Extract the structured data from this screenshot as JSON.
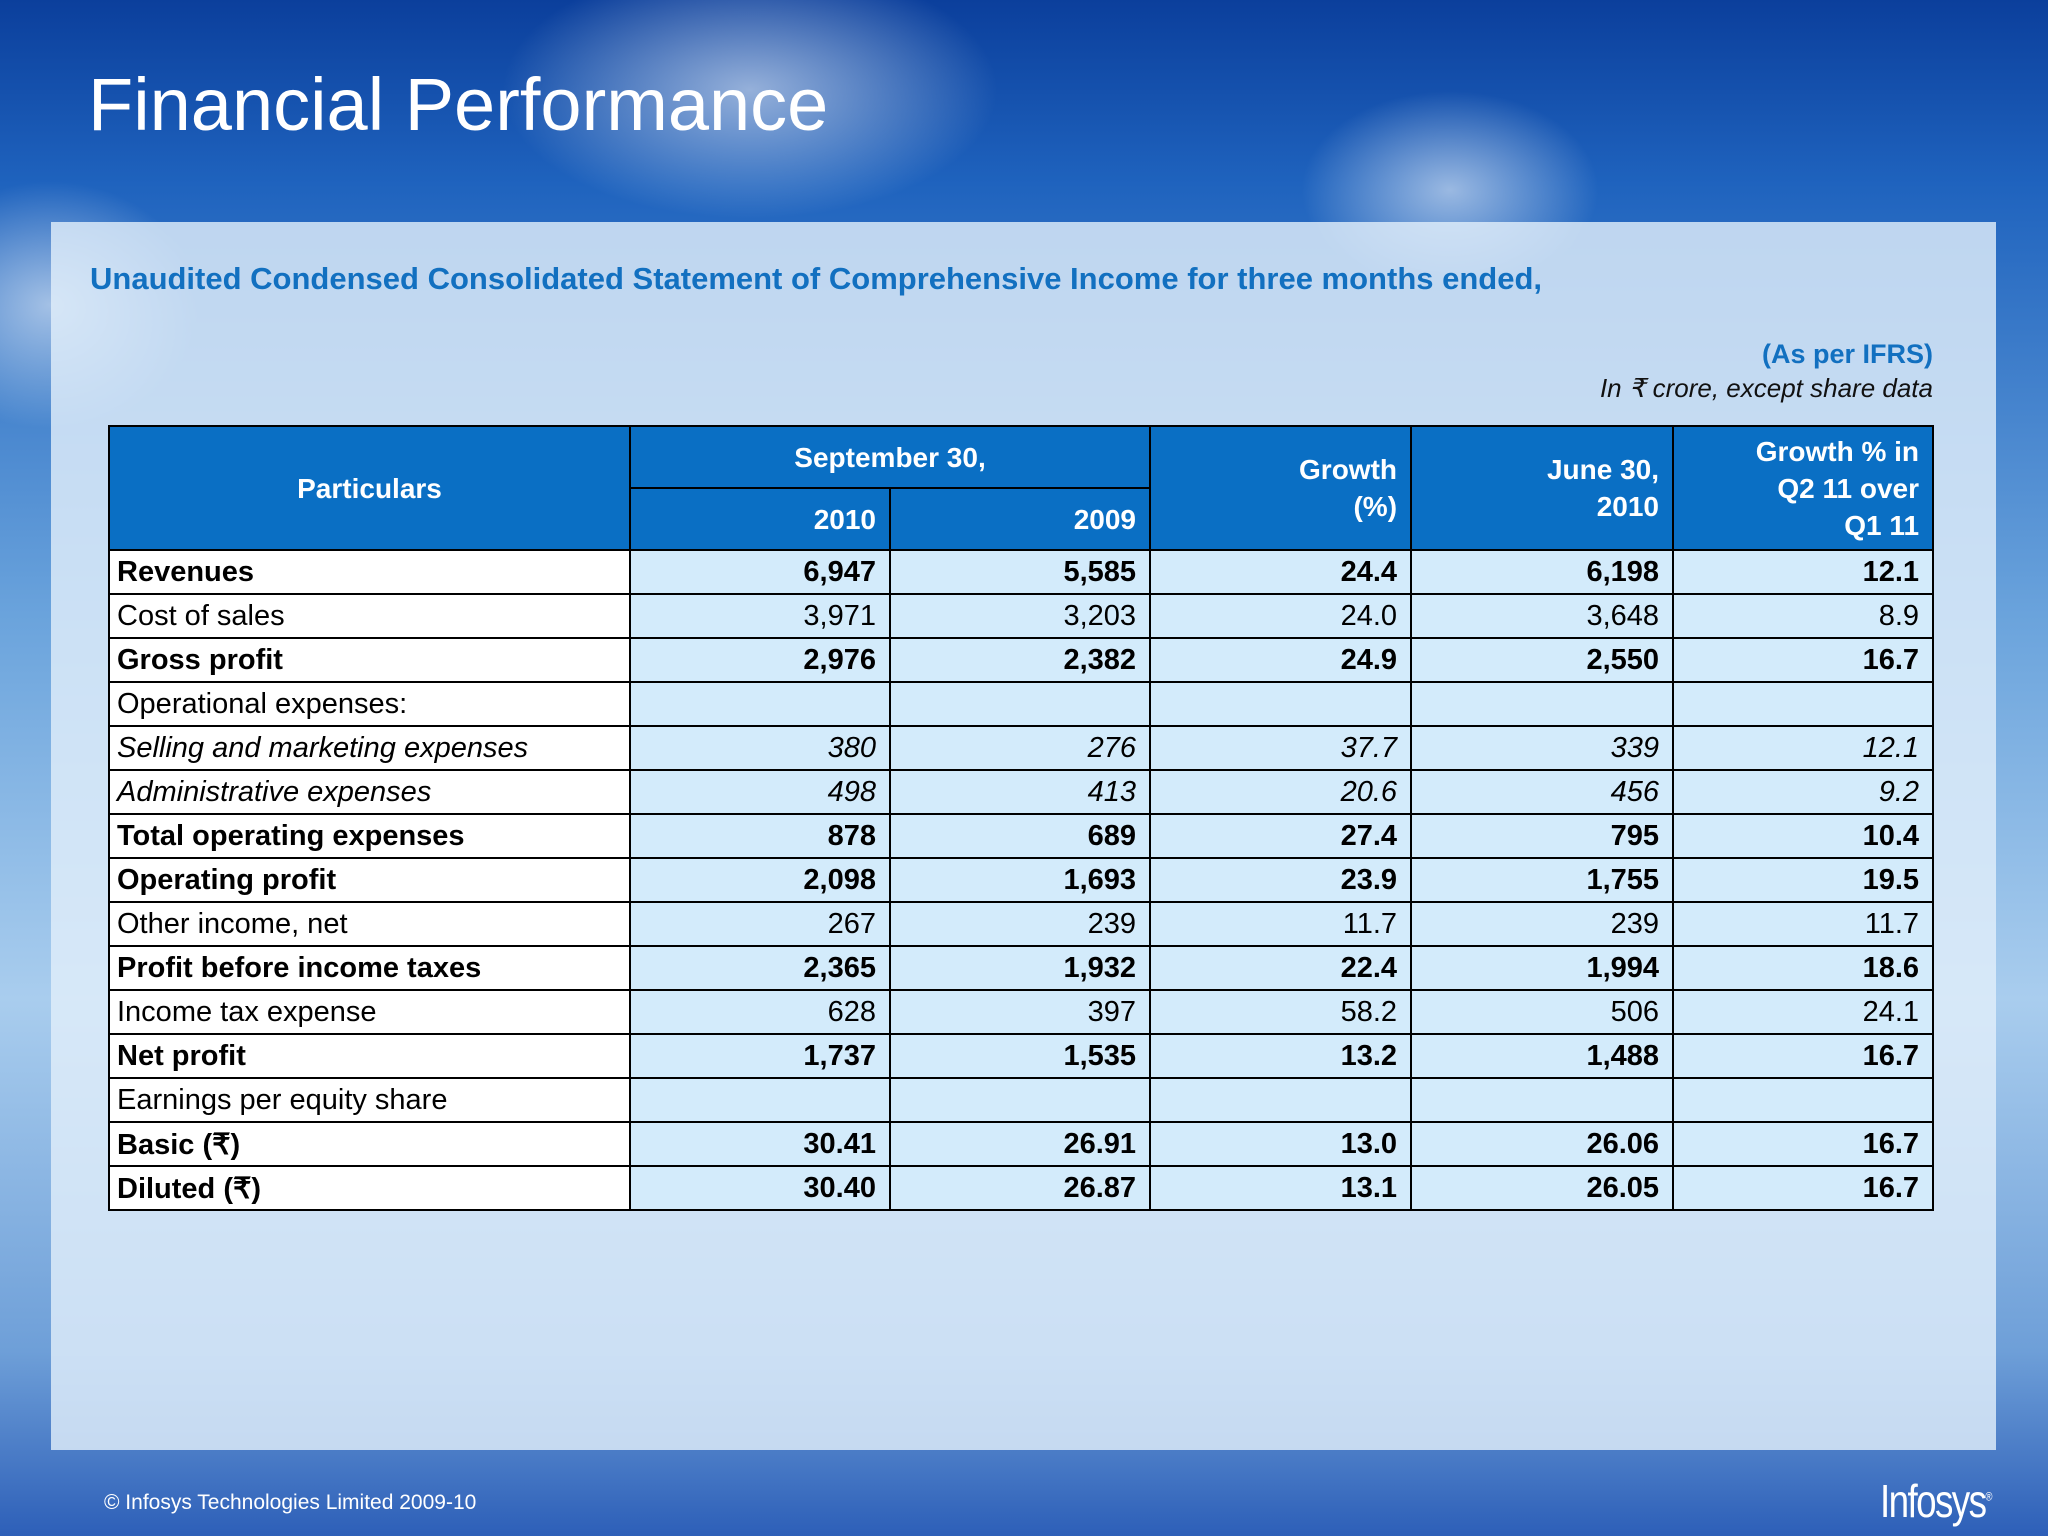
{
  "header": {
    "title": "Financial Performance"
  },
  "statement": {
    "subtitle": "Unaudited Condensed Consolidated Statement of Comprehensive Income for three months ended,",
    "basis": "(As per IFRS)",
    "units": "In ₹ crore, except share data"
  },
  "table": {
    "headers": {
      "particulars": "Particulars",
      "period": "September 30,",
      "years": [
        "2010",
        "2009"
      ],
      "growth": "Growth\n(%)",
      "prior": "June 30,\n2010",
      "qoq": "Growth % in\nQ2 11 over\nQ1 11"
    },
    "rows": [
      {
        "label": "Revenues",
        "style": "bold",
        "cells": [
          "6,947",
          "5,585",
          "24.4",
          "6,198",
          "12.1"
        ]
      },
      {
        "label": "Cost of sales",
        "style": "normal",
        "cells": [
          "3,971",
          "3,203",
          "24.0",
          "3,648",
          "8.9"
        ]
      },
      {
        "label": "Gross profit",
        "style": "bold",
        "cells": [
          "2,976",
          "2,382",
          "24.9",
          "2,550",
          "16.7"
        ]
      },
      {
        "label": "Operational expenses:",
        "style": "normal",
        "cells": []
      },
      {
        "label": "Selling and marketing expenses",
        "style": "italic",
        "cells": [
          "380",
          "276",
          "37.7",
          "339",
          "12.1"
        ]
      },
      {
        "label": "Administrative expenses",
        "style": "italic",
        "cells": [
          "498",
          "413",
          "20.6",
          "456",
          "9.2"
        ]
      },
      {
        "label": "Total operating expenses",
        "style": "bold",
        "cells": [
          "878",
          "689",
          "27.4",
          "795",
          "10.4"
        ]
      },
      {
        "label": "Operating profit",
        "style": "bold",
        "cells": [
          "2,098",
          "1,693",
          "23.9",
          "1,755",
          "19.5"
        ]
      },
      {
        "label": "Other income, net",
        "style": "normal",
        "cells": [
          "267",
          "239",
          "11.7",
          "239",
          "11.7"
        ]
      },
      {
        "label": "Profit before income taxes",
        "style": "bold",
        "cells": [
          "2,365",
          "1,932",
          "22.4",
          "1,994",
          "18.6"
        ]
      },
      {
        "label": "Income tax expense",
        "style": "normal",
        "cells": [
          "628",
          "397",
          "58.2",
          "506",
          "24.1"
        ]
      },
      {
        "label": "Net profit",
        "style": "bold",
        "cells": [
          "1,737",
          "1,535",
          "13.2",
          "1,488",
          "16.7"
        ]
      },
      {
        "label": "Earnings per equity share",
        "style": "normal",
        "cells": []
      },
      {
        "label": "Basic (₹)",
        "style": "bold",
        "cells": [
          "30.41",
          "26.91",
          "13.0",
          "26.06",
          "16.7"
        ]
      },
      {
        "label": "Diluted (₹)",
        "style": "bold",
        "cells": [
          "30.40",
          "26.87",
          "13.1",
          "26.05",
          "16.7"
        ]
      }
    ]
  },
  "footer": {
    "copyright": "© Infosys Technologies Limited 2009-10",
    "logo": "Infosys",
    "mark": "®"
  }
}
